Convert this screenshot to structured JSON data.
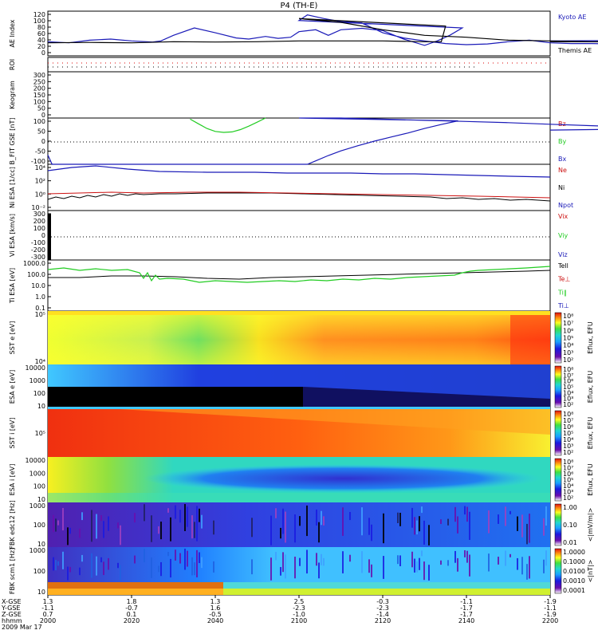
{
  "title": "P4 (TH-E)",
  "colors": {
    "blue": "#1a1ab8",
    "black": "#000000",
    "red": "#cc1010",
    "green": "#22cc22"
  },
  "chart_data": [
    {
      "type": "line",
      "ylabel": "AE Index",
      "yticks": [
        "120",
        "100",
        "80",
        "60",
        "40",
        "20",
        "0"
      ],
      "ylim": [
        0,
        120
      ],
      "legend": [
        {
          "name": "Kyoto AE",
          "color": "#1a1ab8"
        },
        {
          "name": "Themis AE",
          "color": "#000000"
        }
      ],
      "series": [
        {
          "name": "Kyoto AE",
          "x": [
            2000,
            2005,
            2010,
            2015,
            2020,
            2025,
            2027,
            2030,
            2035,
            2040,
            2045,
            2048,
            2052,
            2055,
            2058,
            2060,
            2064,
            2067,
            2070,
            2075,
            2080,
            2085,
            2090,
            2093,
            2096,
            2099,
            2100,
            2102,
            2106,
            2110,
            2115,
            2120,
            2125,
            2130,
            2135,
            2140,
            2145,
            2150,
            2155,
            2160,
            2165,
            2170,
            2175,
            2180,
            2185,
            2190,
            2195,
            2200
          ],
          "y": [
            38,
            35,
            42,
            45,
            40,
            37,
            40,
            55,
            75,
            62,
            48,
            45,
            52,
            47,
            50,
            65,
            70,
            55,
            70,
            74,
            68,
            45,
            28,
            40,
            55,
            75,
            95,
            110,
            100,
            92,
            88,
            62,
            48,
            40,
            33,
            30,
            32,
            38,
            42,
            35,
            33,
            33,
            32,
            30,
            34,
            38,
            42,
            40
          ]
        },
        {
          "name": "Themis AE",
          "x": [
            2000,
            2010,
            2020,
            2030,
            2040,
            2050,
            2060,
            2070,
            2080,
            2090,
            2094,
            2095,
            2100,
            2110,
            2120,
            2130,
            2140,
            2150,
            2160,
            2170,
            2180,
            2190,
            2200
          ],
          "y": [
            35,
            36,
            35,
            38,
            37,
            38,
            40,
            40,
            40,
            38,
            38,
            80,
            100,
            90,
            70,
            55,
            50,
            42,
            40,
            38,
            38,
            37,
            38
          ]
        }
      ]
    },
    {
      "type": "table",
      "ylabel": "ROI"
    },
    {
      "type": "line",
      "ylabel": "Keogram",
      "yticks": [
        "300",
        "250",
        "200",
        "150",
        "100",
        "50",
        "0"
      ]
    },
    {
      "type": "line",
      "ylabel": "B_FIT GSE [nT]",
      "yticks": [
        "100",
        "50",
        "0",
        "-50",
        "-100"
      ],
      "ylim": [
        -100,
        100
      ],
      "legend": [
        {
          "name": "Bz",
          "color": "#cc1010"
        },
        {
          "name": "By",
          "color": "#22cc22"
        },
        {
          "name": "Bx",
          "color": "#1a1ab8"
        }
      ],
      "series": [
        {
          "name": "By",
          "x": [
            2034,
            2036,
            2038,
            2040,
            2042,
            2044,
            2046,
            2048,
            2050,
            2052
          ],
          "y": [
            95,
            75,
            55,
            42,
            38,
            40,
            50,
            65,
            82,
            100
          ]
        },
        {
          "name": "Bx",
          "x": [
            2000,
            2001,
            2062,
            2064,
            2067,
            2070,
            2074,
            2078,
            2082,
            2086,
            2090,
            2094,
            2098,
            2100,
            2110,
            2120,
            2130,
            2140,
            2150,
            2160,
            2170,
            2180,
            2190,
            2200
          ],
          "y": [
            -60,
            -100,
            -100,
            -85,
            -62,
            -42,
            -20,
            0,
            18,
            35,
            55,
            72,
            88,
            100,
            100,
            95,
            90,
            85,
            80,
            73,
            67,
            60,
            55,
            48
          ]
        }
      ]
    },
    {
      "type": "line",
      "ylabel": "Ni ESA [1/cc]",
      "yticks": [
        "10⁴",
        "10²",
        "10⁰",
        "10⁻²"
      ],
      "legend": [
        {
          "name": "Ne",
          "color": "#cc1010"
        },
        {
          "name": "Ni",
          "color": "#000000"
        },
        {
          "name": "Npot",
          "color": "#1a1ab8"
        }
      ]
    },
    {
      "type": "line",
      "ylabel": "Vi ESA [km/s]",
      "yticks": [
        "300",
        "200",
        "100",
        "0",
        "-100",
        "-200",
        "-300"
      ],
      "ylim": [
        -300,
        300
      ],
      "legend": [
        {
          "name": "Vix",
          "color": "#cc1010"
        },
        {
          "name": "Viy",
          "color": "#22cc22"
        },
        {
          "name": "Viz",
          "color": "#1a1ab8"
        }
      ]
    },
    {
      "type": "line",
      "ylabel": "Ti ESA [eV]",
      "yticks": [
        "1000.0",
        "100.0",
        "10.0",
        "1.0",
        "0.1"
      ],
      "legend": [
        {
          "name": "Tell",
          "color": "#000000"
        },
        {
          "name": "Te⊥",
          "color": "#cc1010"
        },
        {
          "name": "Ti‖",
          "color": "#22cc22"
        },
        {
          "name": "Ti⊥",
          "color": "#1a1ab8"
        }
      ]
    },
    {
      "type": "heatmap",
      "ylabel": "SST e [eV]",
      "yticks": [
        "10⁵",
        "10⁴"
      ],
      "colorbar_label": "Eflux, EFU",
      "colorbar_ticks": [
        "10⁸",
        "10⁷",
        "10⁶",
        "10⁵",
        "10⁴",
        "10³",
        "10²"
      ]
    },
    {
      "type": "heatmap",
      "ylabel": "ESA e [eV]",
      "yticks": [
        "10000",
        "1000",
        "100",
        "10"
      ],
      "colorbar_label": "Eflux, EFU",
      "colorbar_ticks": [
        "10⁸",
        "10⁷",
        "10⁶",
        "10⁵",
        "10⁴",
        "10³",
        "10²"
      ]
    },
    {
      "type": "heatmap",
      "ylabel": "SST i [eV]",
      "yticks": [
        "10⁵"
      ],
      "colorbar_label": "Eflux, EFU",
      "colorbar_ticks": [
        "10⁸",
        "10⁷",
        "10⁶",
        "10⁵",
        "10⁴",
        "10³",
        "10²"
      ]
    },
    {
      "type": "heatmap",
      "ylabel": "ESA i [eV]",
      "yticks": [
        "10000",
        "1000",
        "100",
        "10"
      ],
      "colorbar_label": "Eflux, EFU",
      "colorbar_ticks": [
        "10⁸",
        "10⁷",
        "10⁶",
        "10⁵",
        "10⁴",
        "10³",
        "10²"
      ]
    },
    {
      "type": "heatmap",
      "ylabel": "FBK edc12 [Hz]",
      "yticks": [
        "1000",
        "100",
        "10"
      ],
      "colorbar_label": "<|mV/m|>",
      "colorbar_ticks": [
        "1.00",
        "0.10",
        "0.01"
      ]
    },
    {
      "type": "heatmap",
      "ylabel": "FBK scm1 [Hz]",
      "yticks": [
        "1000",
        "100",
        "10"
      ],
      "colorbar_label": "<|nT|>",
      "colorbar_ticks": [
        "1.0000",
        "0.1000",
        "0.0100",
        "0.0010",
        "0.0001"
      ]
    }
  ],
  "xaxis": {
    "row_labels": [
      "X-GSE",
      "Y-GSE",
      "Z-GSE",
      "hhmm",
      "2009 Mar 17"
    ],
    "ticks": [
      {
        "x": "1.3",
        "y": "-1.1",
        "z": "0.7",
        "t": "2000"
      },
      {
        "x": "1.8",
        "y": "-0.7",
        "z": "0.1",
        "t": "2020"
      },
      {
        "x": "1.3",
        "y": "1.6",
        "z": "-0.5",
        "t": "2040"
      },
      {
        "x": "2.5",
        "y": "-2.3",
        "z": "-1.0",
        "t": "2100"
      },
      {
        "x": "-0.3",
        "y": "-2.3",
        "z": "-1.4",
        "t": "2120"
      },
      {
        "x": "-1.1",
        "y": "-1.7",
        "z": "-1.7",
        "t": "2140"
      },
      {
        "x": "-1.9",
        "y": "-1.1",
        "z": "-1.9",
        "t": "2200"
      }
    ]
  }
}
